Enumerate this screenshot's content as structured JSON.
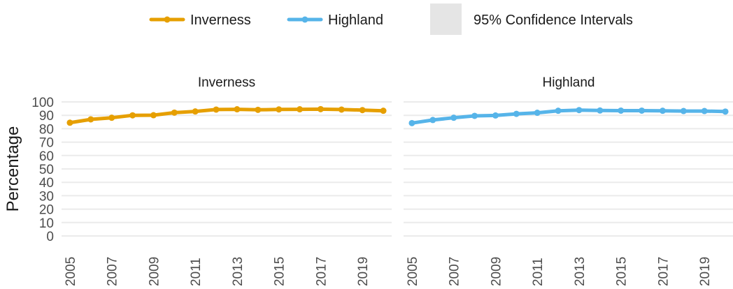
{
  "chart_data": {
    "type": "line",
    "ylabel": "Percentage",
    "ylim": [
      0,
      100
    ],
    "y_ticks": [
      0,
      10,
      20,
      30,
      40,
      50,
      60,
      70,
      80,
      90,
      100
    ],
    "x_ticks": [
      2005,
      2007,
      2009,
      2011,
      2013,
      2015,
      2017,
      2019
    ],
    "xlim": [
      2004.6,
      2020.4
    ],
    "grid": true,
    "legend_position": "top",
    "legend": {
      "series": [
        {
          "name": "Inverness",
          "color": "#E69F00"
        },
        {
          "name": "Highland",
          "color": "#56B4E9"
        }
      ],
      "ci_label": "95% Confidence Intervals",
      "ci_color": "#e5e5e5"
    },
    "panels": [
      {
        "title": "Inverness",
        "color": "#E69F00",
        "x": [
          2005,
          2006,
          2007,
          2008,
          2009,
          2010,
          2011,
          2012,
          2013,
          2014,
          2015,
          2016,
          2017,
          2018,
          2019,
          2020
        ],
        "y": [
          84.5,
          87.0,
          88.2,
          90.0,
          90.1,
          92.0,
          92.9,
          94.3,
          94.5,
          94.1,
          94.4,
          94.5,
          94.6,
          94.3,
          93.9,
          93.4
        ],
        "ci_low": [
          83.0,
          85.8,
          87.0,
          89.0,
          89.0,
          91.0,
          92.0,
          93.5,
          93.7,
          93.3,
          93.6,
          93.7,
          93.8,
          93.5,
          93.1,
          92.5
        ],
        "ci_high": [
          86.0,
          88.2,
          89.4,
          91.0,
          91.2,
          93.0,
          93.8,
          95.1,
          95.3,
          94.9,
          95.2,
          95.3,
          95.4,
          95.1,
          94.7,
          94.3
        ]
      },
      {
        "title": "Highland",
        "color": "#56B4E9",
        "x": [
          2005,
          2006,
          2007,
          2008,
          2009,
          2010,
          2011,
          2012,
          2013,
          2014,
          2015,
          2016,
          2017,
          2018,
          2019,
          2020
        ],
        "y": [
          84.2,
          86.5,
          88.2,
          89.6,
          89.9,
          91.1,
          91.9,
          93.4,
          93.9,
          93.6,
          93.5,
          93.5,
          93.4,
          93.2,
          93.2,
          92.8
        ],
        "ci_low": [
          83.7,
          86.0,
          87.7,
          89.1,
          89.4,
          90.6,
          91.4,
          92.9,
          93.4,
          93.1,
          93.0,
          93.0,
          92.9,
          92.7,
          92.7,
          92.3
        ],
        "ci_high": [
          84.7,
          87.0,
          88.7,
          90.1,
          90.4,
          91.6,
          92.4,
          93.9,
          94.4,
          94.1,
          94.0,
          94.0,
          93.9,
          93.7,
          93.7,
          93.3
        ]
      }
    ]
  }
}
